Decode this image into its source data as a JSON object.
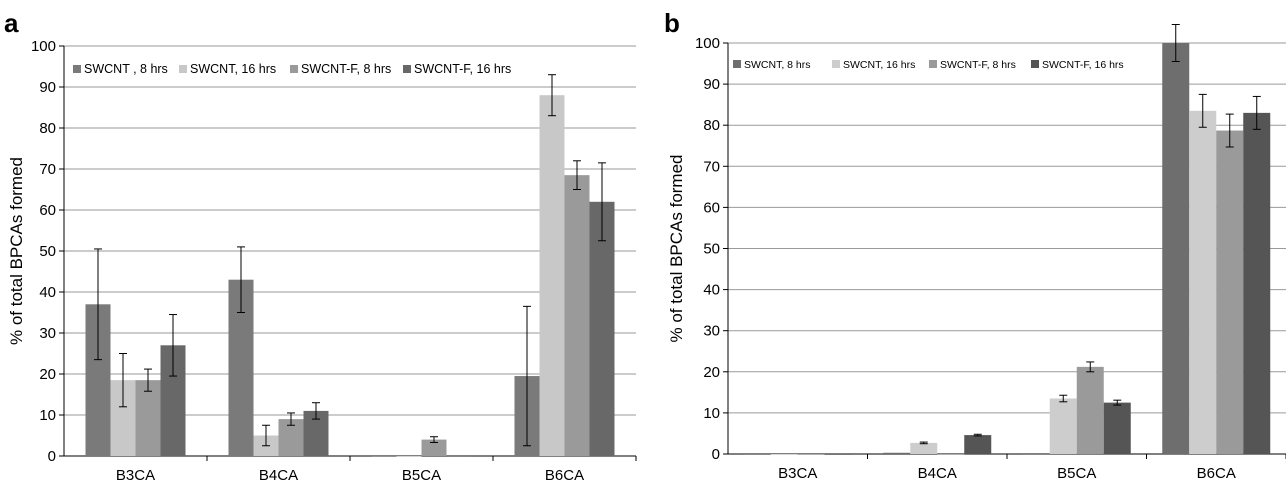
{
  "chart_data": [
    {
      "panel": "a",
      "type": "bar",
      "title": "",
      "xlabel": "",
      "ylabel": "% of total BPCAs formed",
      "ylim": [
        0,
        100
      ],
      "yticks": [
        "0",
        "10",
        "20",
        "30",
        "40",
        "50",
        "60",
        "70",
        "80",
        "90",
        "100"
      ],
      "categories": [
        "B3CA",
        "B4CA",
        "B5CA",
        "B6CA"
      ],
      "grid": true,
      "legend_position": "top",
      "series": [
        {
          "name": "SWCNT , 8 hrs",
          "color": "#7a7a7a",
          "values": [
            37,
            43,
            0,
            19.5
          ],
          "errors": [
            13.5,
            8,
            0,
            17
          ]
        },
        {
          "name": "SWCNT, 16 hrs",
          "color": "#c8c8c8",
          "values": [
            18.5,
            5,
            0,
            88
          ],
          "errors": [
            6.5,
            2.5,
            0,
            5
          ]
        },
        {
          "name": "SWCNT-F, 8 hrs",
          "color": "#9a9a9a",
          "values": [
            18.5,
            9,
            4,
            68.5
          ],
          "errors": [
            2.7,
            1.5,
            0.7,
            3.5
          ]
        },
        {
          "name": "SWCNT-F, 16 hrs",
          "color": "#686868",
          "values": [
            27,
            11,
            0,
            62
          ],
          "errors": [
            7.5,
            2,
            0,
            9.5
          ]
        }
      ]
    },
    {
      "panel": "b",
      "type": "bar",
      "title": "",
      "xlabel": "",
      "ylabel": "% of total BPCAs formed",
      "ylim": [
        0,
        100
      ],
      "yticks": [
        "0",
        "10",
        "20",
        "30",
        "40",
        "50",
        "60",
        "70",
        "80",
        "90",
        "100"
      ],
      "categories": [
        "B3CA",
        "B4CA",
        "B5CA",
        "B6CA"
      ],
      "grid": true,
      "legend_position": "top",
      "series": [
        {
          "name": "SWCNT, 8 hrs",
          "color": "#6e6e6e",
          "values": [
            0,
            0.3,
            0,
            100
          ],
          "errors": [
            0,
            0,
            0,
            4.5
          ]
        },
        {
          "name": "SWCNT, 16 hrs",
          "color": "#cdcdcd",
          "values": [
            0,
            2.7,
            13.5,
            83.5
          ],
          "errors": [
            0,
            0.2,
            0.8,
            4
          ]
        },
        {
          "name": "SWCNT-F, 8 hrs",
          "color": "#9a9a9a",
          "values": [
            0,
            0,
            21.2,
            78.7
          ],
          "errors": [
            0,
            0,
            1.2,
            4
          ]
        },
        {
          "name": "SWCNT-F, 16 hrs",
          "color": "#555555",
          "values": [
            0,
            4.6,
            12.5,
            83
          ],
          "errors": [
            0,
            0.2,
            0.6,
            4
          ]
        }
      ]
    }
  ]
}
